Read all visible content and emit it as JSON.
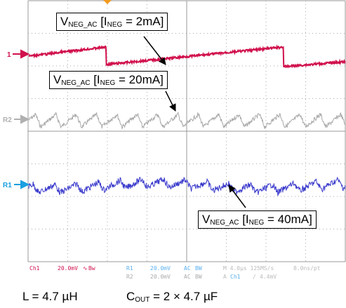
{
  "markers": [
    "1",
    "R2",
    "R1"
  ],
  "annotations": [
    {
      "v": "V",
      "v_sub": "NEG_AC",
      "i": " [I",
      "i_sub": "NEG",
      "rest": " = 2mA]"
    },
    {
      "v": "V",
      "v_sub": "NEG_AC",
      "i": " [I",
      "i_sub": "NEG",
      "rest": " = 20mA]"
    },
    {
      "v": "V",
      "v_sub": "NEG_AC",
      "i": " [I",
      "i_sub": "NEG",
      "rest": " = 40mA]"
    }
  ],
  "status": {
    "row1": [
      "Ch1",
      "20.0mV",
      "∿",
      "Bw",
      "R1",
      "20.0mV",
      "AC",
      "BW",
      "M 4.0µs 125MS/s",
      "8.0ns/pt"
    ],
    "row2": [
      "R2",
      "20.0mV",
      "AC",
      "BW",
      "A",
      "Ch1",
      "∕",
      "4.4mV"
    ]
  },
  "caption": {
    "l": "L = 4.7 µH",
    "c": "C",
    "c_sub": "OUT",
    "c_rest": " = 2 × 4.7 µF"
  }
}
